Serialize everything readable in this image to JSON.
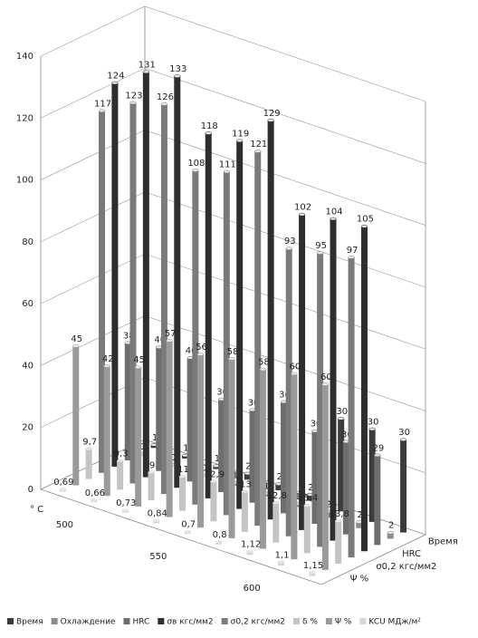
{
  "chart_data": {
    "type": "bar3d",
    "x_label": "° C",
    "categories": [
      null,
      "500",
      null,
      null,
      "550",
      null,
      null,
      "600",
      null
    ],
    "ylim": [
      0,
      140
    ],
    "yticks": [
      0,
      20,
      40,
      60,
      80,
      100,
      120,
      140
    ],
    "grid": true,
    "series": [
      {
        "name": "Время",
        "color": "#3c3c3c",
        "values": [
          1,
          1,
          1,
          2,
          2,
          2,
          30,
          30,
          30
        ]
      },
      {
        "name": "Охлаждение",
        "color": "#8c8c8c",
        "values": [
          0,
          0,
          0,
          1,
          1,
          1,
          2,
          2,
          2
        ]
      },
      {
        "name": "HRC",
        "color": "#6e6e6e",
        "values": [
          38,
          40,
          40,
          30,
          30,
          36,
          30,
          30,
          29
        ]
      },
      {
        "name": "σв кгс/мм2",
        "color": "#2e2e2e",
        "values": [
          124,
          131,
          133,
          118,
          119,
          129,
          102,
          104,
          105
        ]
      },
      {
        "name": "σ0,2 кгс/мм2",
        "color": "#7a7a7a",
        "values": [
          117,
          123,
          126,
          108,
          111,
          121,
          93,
          95,
          97
        ]
      },
      {
        "name": "δ %",
        "color": "#c4c4c4",
        "values": [
          9.7,
          9.3,
          9,
          11,
          12.9,
          13,
          12.8,
          15.4,
          13.8
        ],
        "value_labels": [
          "9,7",
          "9,3",
          "9",
          "11",
          "12,9",
          "13",
          "12,8",
          "15,4",
          "13,8"
        ]
      },
      {
        "name": "Ψ %",
        "color": "#9a9a9a",
        "values": [
          45,
          42,
          45,
          57,
          56,
          58,
          58,
          60,
          60
        ]
      },
      {
        "name": "KCU МДж/м²",
        "color": "#d6d6d6",
        "values": [
          0.69,
          0.66,
          0.73,
          0.84,
          0.7,
          0.8,
          1.12,
          1.1,
          1.15
        ],
        "value_labels": [
          "0,69",
          "0,66",
          "0,73",
          "0,84",
          "0,7",
          "0,8",
          "1,12",
          "1,1",
          "1,15"
        ]
      }
    ]
  }
}
